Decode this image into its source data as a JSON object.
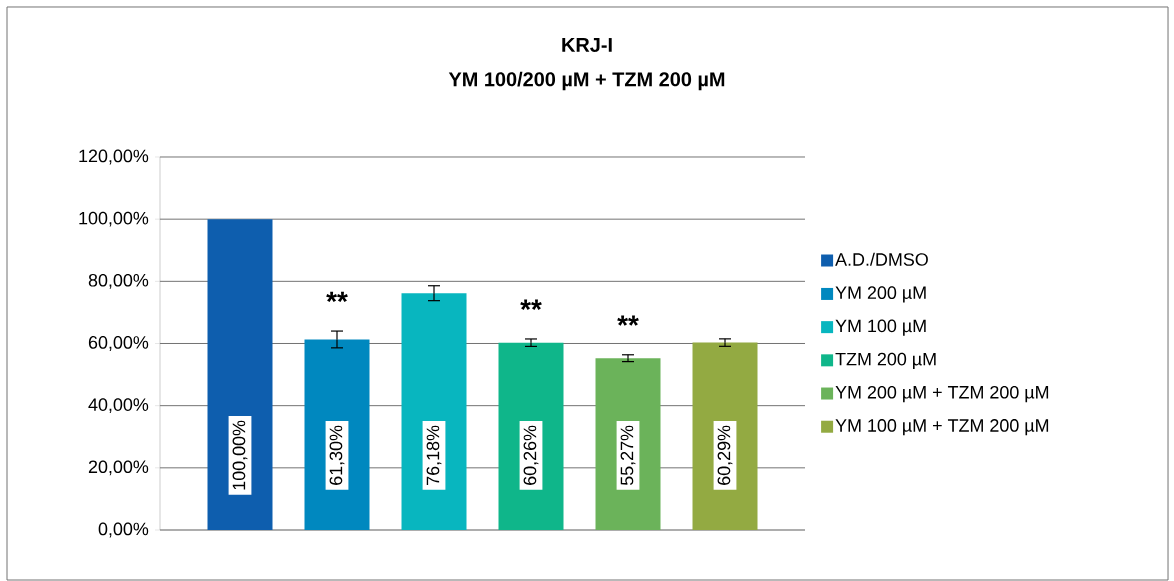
{
  "chart_data": {
    "type": "bar",
    "title": "KRJ-I",
    "subtitle": "YM 100/200 µM + TZM 200 µM",
    "categories": [
      null
    ],
    "series": [
      {
        "name": "A.D./DMSO",
        "color": "#0e5eae",
        "values": [
          100
        ],
        "value_labels": [
          "100,00%"
        ]
      },
      {
        "name": "YM 200 µM",
        "color": "#0088bf",
        "values": [
          61.3
        ],
        "errors": [
          2.7
        ],
        "value_labels": [
          "61,30%"
        ]
      },
      {
        "name": "YM 100 µM",
        "color": "#08b6bf",
        "values": [
          76.18
        ],
        "errors": [
          2.4
        ],
        "value_labels": [
          "76,18%"
        ]
      },
      {
        "name": "TZM 200 µM",
        "color": "#0fb68a",
        "values": [
          60.26
        ],
        "errors": [
          1.2
        ],
        "value_labels": [
          "60,26%"
        ]
      },
      {
        "name": "YM 200 µM + TZM 200 µM",
        "color": "#6bb35a",
        "values": [
          55.27
        ],
        "errors": [
          1.1
        ],
        "value_labels": [
          "55,27%"
        ]
      },
      {
        "name": "YM 100 µM + TZM 200 µM",
        "color": "#93aa42",
        "values": [
          60.29
        ],
        "errors": [
          1.2
        ],
        "value_labels": [
          "60,29%"
        ]
      }
    ],
    "annotations": [
      null,
      "**",
      null,
      "**",
      "**",
      null
    ],
    "ylim": [
      0,
      120
    ],
    "yticks": [
      {
        "value": 0,
        "label": "0,00%"
      },
      {
        "value": 20,
        "label": "20,00%"
      },
      {
        "value": 40,
        "label": "40,00%"
      },
      {
        "value": 60,
        "label": "60,00%"
      },
      {
        "value": 80,
        "label": "80,00%"
      },
      {
        "value": 100,
        "label": "100,00%"
      },
      {
        "value": 120,
        "label": "120,00%"
      }
    ],
    "grid": "y",
    "legend": "right"
  }
}
